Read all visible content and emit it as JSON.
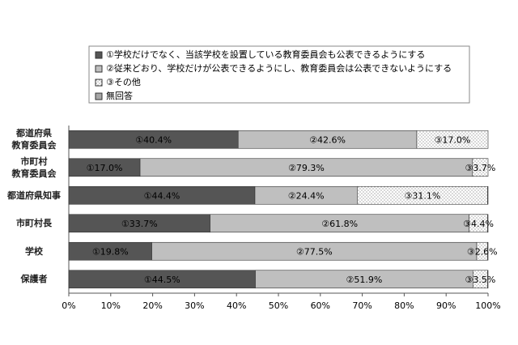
{
  "chart_data": {
    "type": "stacked-bar-horizontal",
    "categories": [
      "都道府県\n教育委員会",
      "市町村\n教育委員会",
      "都道府県知事",
      "市町村長",
      "学校",
      "保護者"
    ],
    "series": [
      {
        "name": "①学校だけでなく、当該学校を設置している教育委員会も公表できるようにする",
        "color": "#555555",
        "values": [
          40.4,
          17.0,
          44.4,
          33.7,
          19.8,
          44.5
        ],
        "value_labels": [
          "①40.4%",
          "①17.0%",
          "①44.4%",
          "①33.7%",
          "①19.8%",
          "①44.5%"
        ]
      },
      {
        "name": "②従来どおり、学校だけが公表できるようにし、教育委員会は公表できないようにする",
        "color": "#bfbfbf",
        "values": [
          42.6,
          79.3,
          24.4,
          61.8,
          77.5,
          51.9
        ],
        "value_labels": [
          "②42.6%",
          "②79.3%",
          "②24.4%",
          "②61.8%",
          "②77.5%",
          "②51.9%"
        ]
      },
      {
        "name": "③その他",
        "color": "#ffffff",
        "pattern": "dots",
        "values": [
          17.0,
          3.7,
          31.1,
          4.4,
          2.6,
          3.5
        ],
        "value_labels": [
          "③17.0%",
          "③3.7%",
          "③31.1%",
          "③4.4%",
          "③2.6%",
          "③3.5%"
        ]
      },
      {
        "name": "無回答",
        "color": "#a6a6a6",
        "values": [
          0,
          0,
          0.1,
          0.1,
          0.1,
          0.1
        ]
      }
    ],
    "xlim": [
      0,
      100
    ],
    "xticks": [
      {
        "value": 0,
        "label": "0%"
      },
      {
        "value": 10,
        "label": "10%"
      },
      {
        "value": 20,
        "label": "20%"
      },
      {
        "value": 30,
        "label": "30%"
      },
      {
        "value": 40,
        "label": "40%"
      },
      {
        "value": 50,
        "label": "50%"
      },
      {
        "value": 60,
        "label": "60%"
      },
      {
        "value": 70,
        "label": "70%"
      },
      {
        "value": 80,
        "label": "80%"
      },
      {
        "value": 90,
        "label": "90%"
      },
      {
        "value": 100,
        "label": "100%"
      }
    ]
  }
}
